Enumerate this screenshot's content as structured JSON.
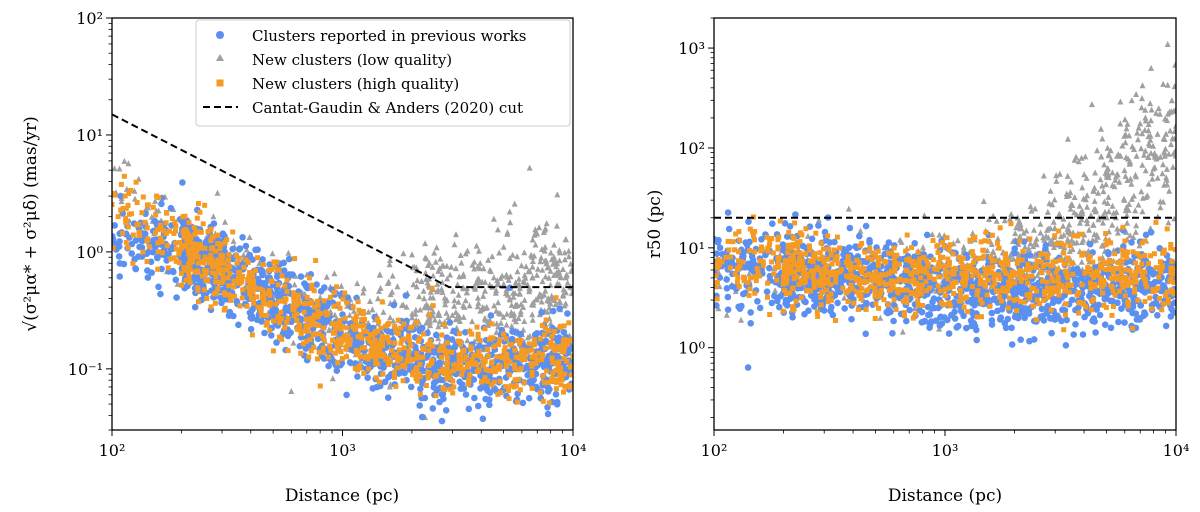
{
  "colors": {
    "previous": "#5b8ff0",
    "low": "#a0a0a0",
    "high": "#f59a23",
    "cut": "#000000"
  },
  "chart_data": [
    {
      "type": "scatter",
      "xscale": "log",
      "yscale": "log",
      "xlabel": "Distance (pc)",
      "ylabel": "√(σ²μα* + σ²μδ) (mas/yr)",
      "xlim": [
        100,
        10000
      ],
      "ylim": [
        0.03,
        100
      ],
      "xticks": [
        {
          "v": 100,
          "label": "10²"
        },
        {
          "v": 1000,
          "label": "10³"
        },
        {
          "v": 10000,
          "label": "10⁴"
        }
      ],
      "yticks": [
        {
          "v": 0.1,
          "label": "10⁻¹"
        },
        {
          "v": 1,
          "label": "10⁰"
        },
        {
          "v": 10,
          "label": "10¹"
        },
        {
          "v": 100,
          "label": "10²"
        }
      ],
      "legend_position": "top-right",
      "legend": [
        {
          "label": "Clusters reported in previous works",
          "marker": "circle",
          "color_key": "previous"
        },
        {
          "label": "New clusters (low quality)",
          "marker": "triangle",
          "color_key": "low"
        },
        {
          "label": "New clusters (high quality)",
          "marker": "square",
          "color_key": "high"
        },
        {
          "label": "Cantat-Gaudin & Anders (2020) cut",
          "marker": "dashed-line",
          "color_key": "cut"
        }
      ],
      "cut_line": {
        "x": [
          100,
          2900,
          10000
        ],
        "y": [
          15,
          0.5,
          0.5
        ]
      },
      "series_trends": {
        "previous": {
          "x": [
            100,
            200,
            400,
            1000,
            2500,
            10000
          ],
          "y": [
            1.4,
            1.0,
            0.5,
            0.2,
            0.1,
            0.12
          ]
        },
        "low": {
          "x": [
            100,
            400,
            1000,
            2500,
            10000
          ],
          "y": [
            3.0,
            0.6,
            0.25,
            0.35,
            0.5
          ]
        },
        "high": {
          "x": [
            100,
            200,
            400,
            1000,
            2500,
            10000
          ],
          "y": [
            2.5,
            1.2,
            0.5,
            0.2,
            0.12,
            0.12
          ]
        }
      }
    },
    {
      "type": "scatter",
      "xscale": "log",
      "yscale": "log",
      "xlabel": "Distance (pc)",
      "ylabel": "r50 (pc)",
      "xlim": [
        100,
        10000
      ],
      "ylim": [
        0.15,
        2000
      ],
      "xticks": [
        {
          "v": 100,
          "label": "10²"
        },
        {
          "v": 1000,
          "label": "10³"
        },
        {
          "v": 10000,
          "label": "10⁴"
        }
      ],
      "yticks": [
        {
          "v": 1,
          "label": "10⁰"
        },
        {
          "v": 10,
          "label": "10¹"
        },
        {
          "v": 100,
          "label": "10²"
        },
        {
          "v": 1000,
          "label": "10³"
        }
      ],
      "cut_line": {
        "x": [
          100,
          10000
        ],
        "y": [
          20,
          20
        ]
      },
      "series_trends": {
        "previous": {
          "x": [
            100,
            500,
            1000,
            3000,
            10000
          ],
          "y": [
            6,
            5,
            4,
            3.5,
            4.5
          ]
        },
        "low": {
          "x": [
            100,
            1000,
            3000,
            6000,
            10000
          ],
          "y": [
            5,
            6,
            10,
            40,
            150
          ]
        },
        "high": {
          "x": [
            100,
            500,
            1000,
            3000,
            10000
          ],
          "y": [
            8,
            5,
            5,
            5,
            6
          ]
        }
      }
    }
  ]
}
